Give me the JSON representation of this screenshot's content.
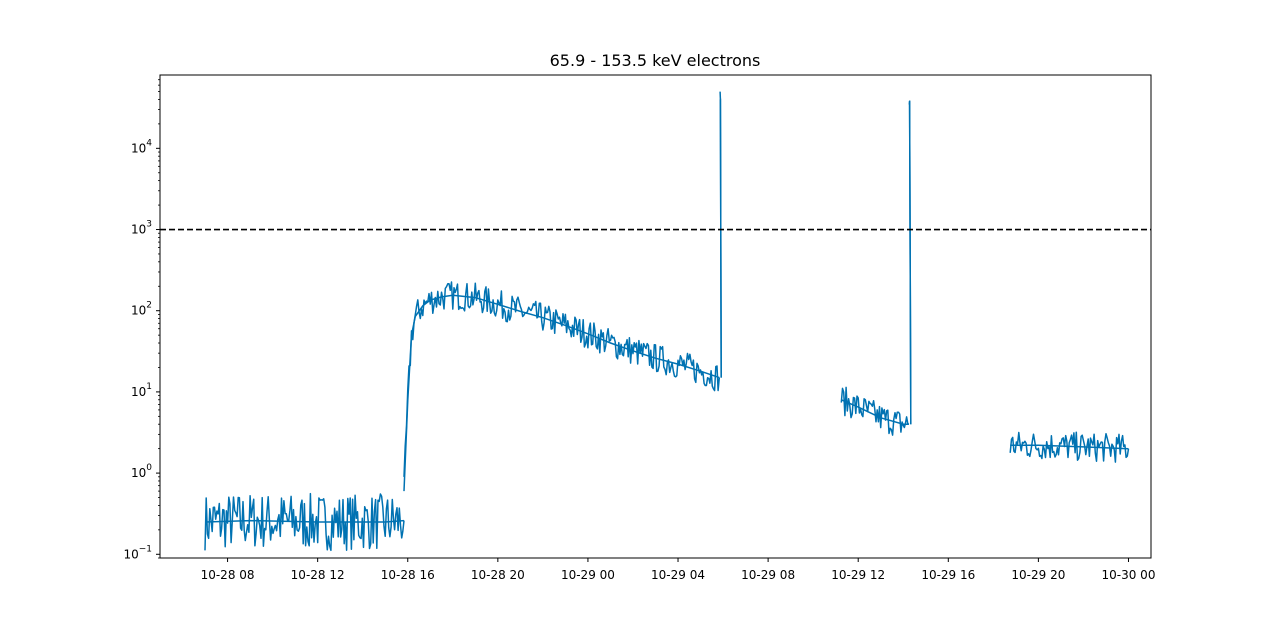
{
  "chart_data": {
    "type": "line",
    "title": "65.9 - 153.5 keV electrons",
    "xlabel": "",
    "ylabel": "",
    "yscale": "log",
    "ylim": [
      0.09,
      80000
    ],
    "xlim": [
      "2024-10-28 05:00",
      "2024-10-30 01:00"
    ],
    "x_tick_labels": [
      "10-28 08",
      "10-28 12",
      "10-28 16",
      "10-28 20",
      "10-29 00",
      "10-29 04",
      "10-29 08",
      "10-29 12",
      "10-29 16",
      "10-29 20",
      "10-30 00"
    ],
    "y_tick_labels": [
      {
        "base": "10",
        "exp": "−1",
        "value": 0.1
      },
      {
        "base": "10",
        "exp": "0",
        "value": 1
      },
      {
        "base": "10",
        "exp": "1",
        "value": 10
      },
      {
        "base": "10",
        "exp": "2",
        "value": 100
      },
      {
        "base": "10",
        "exp": "3",
        "value": 1000
      },
      {
        "base": "10",
        "exp": "4",
        "value": 10000
      }
    ],
    "threshold": {
      "value": 1000,
      "style": "dashed",
      "color": "#000000"
    },
    "series_color": "#0072b2",
    "grid": false,
    "series": [
      {
        "segments": [
          {
            "x": [
              "2024-10-28 07:00",
              "2024-10-28 09:00",
              "2024-10-28 12:00",
              "2024-10-28 15:00",
              "2024-10-28 15:50"
            ],
            "y": [
              0.25,
              0.26,
              0.25,
              0.25,
              0.26
            ]
          },
          {
            "x": [
              "2024-10-28 15:50",
              "2024-10-28 16:00",
              "2024-10-28 16:10",
              "2024-10-28 16:20",
              "2024-10-28 16:40",
              "2024-10-28 17:00",
              "2024-10-28 17:30",
              "2024-10-28 18:00",
              "2024-10-28 19:00",
              "2024-10-28 20:00",
              "2024-10-28 21:00",
              "2024-10-28 22:00",
              "2024-10-28 23:00",
              "2024-10-29 00:00",
              "2024-10-29 01:00",
              "2024-10-29 02:00",
              "2024-10-29 03:00",
              "2024-10-29 04:00",
              "2024-10-29 05:00",
              "2024-10-29 05:50"
            ],
            "y": [
              0.6,
              8,
              50,
              85,
              115,
              135,
              148,
              155,
              145,
              120,
              98,
              82,
              66,
              52,
              40,
              32,
              26,
              22,
              18,
              15
            ]
          },
          {
            "x": [
              "2024-10-29 05:52",
              "2024-10-29 05:53",
              "2024-10-29 05:55"
            ],
            "y": [
              40000,
              40000,
              15
            ]
          },
          {
            "x": [
              "2024-10-29 11:15",
              "2024-10-29 12:00",
              "2024-10-29 13:00",
              "2024-10-29 14:00",
              "2024-10-29 14:15"
            ],
            "y": [
              8,
              6.5,
              4.8,
              4,
              4
            ]
          },
          {
            "x": [
              "2024-10-29 14:16",
              "2024-10-29 14:17",
              "2024-10-29 14:20"
            ],
            "y": [
              38000,
              38000,
              4
            ]
          },
          {
            "x": [
              "2024-10-29 18:45",
              "2024-10-29 20:00",
              "2024-10-29 22:00",
              "2024-10-30 00:00"
            ],
            "y": [
              2.2,
              2.2,
              2.1,
              2.0
            ]
          }
        ]
      }
    ]
  }
}
